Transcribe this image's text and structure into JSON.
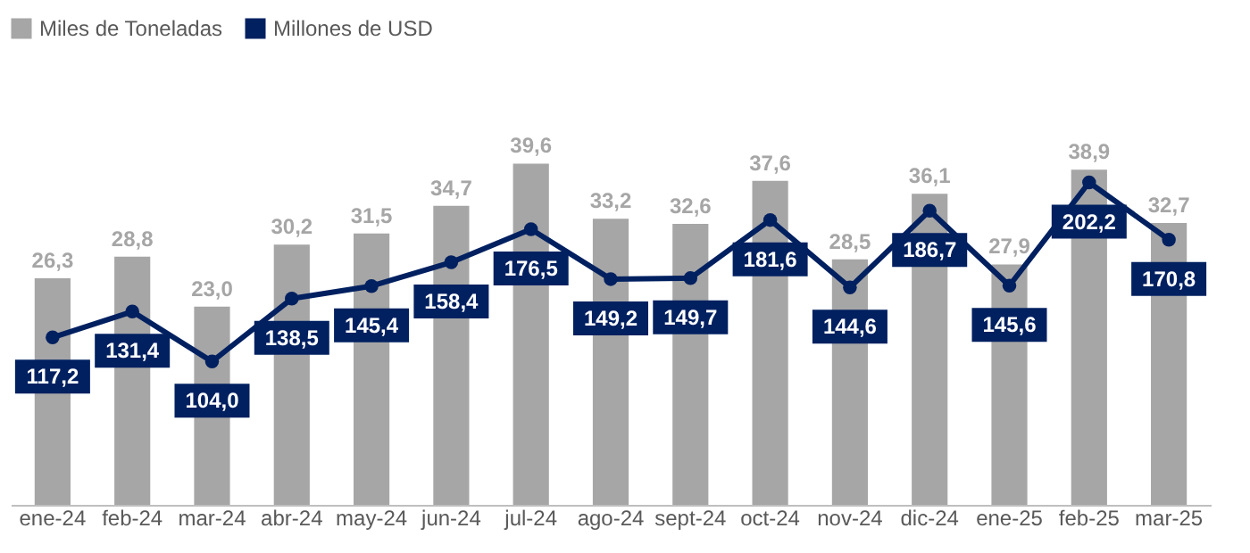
{
  "chart_data": {
    "type": "bar",
    "categories": [
      "ene-24",
      "feb-24",
      "mar-24",
      "abr-24",
      "may-24",
      "jun-24",
      "jul-24",
      "ago-24",
      "sept-24",
      "oct-24",
      "nov-24",
      "dic-24",
      "ene-25",
      "feb-25",
      "mar-25"
    ],
    "series": [
      {
        "name": "Miles de Toneladas",
        "color": "#a6a6a6",
        "values": [
          26.3,
          28.8,
          23.0,
          30.2,
          31.5,
          34.7,
          39.6,
          33.2,
          32.6,
          37.6,
          28.5,
          36.1,
          27.9,
          38.9,
          32.7
        ],
        "value_labels": [
          "26,3",
          "28,8",
          "23,0",
          "30,2",
          "31,5",
          "34,7",
          "39,6",
          "33,2",
          "32,6",
          "37,6",
          "28,5",
          "36,1",
          "27,9",
          "38,9",
          "32,7"
        ]
      },
      {
        "name": "Millones de USD",
        "type": "line",
        "axis": "y2",
        "color": "#002060",
        "values": [
          117.2,
          131.4,
          104.0,
          138.5,
          145.4,
          158.4,
          176.5,
          149.2,
          149.7,
          181.6,
          144.6,
          186.7,
          145.6,
          202.2,
          170.8
        ],
        "value_labels": [
          "117,2",
          "131,4",
          "104,0",
          "138,5",
          "145,4",
          "158,4",
          "176,5",
          "149,2",
          "149,7",
          "181,6",
          "144,6",
          "186,7",
          "145,6",
          "202,2",
          "170,8"
        ]
      }
    ],
    "legend": "top",
    "marker": "circle",
    "tick_labels": "x",
    "grid": false
  }
}
